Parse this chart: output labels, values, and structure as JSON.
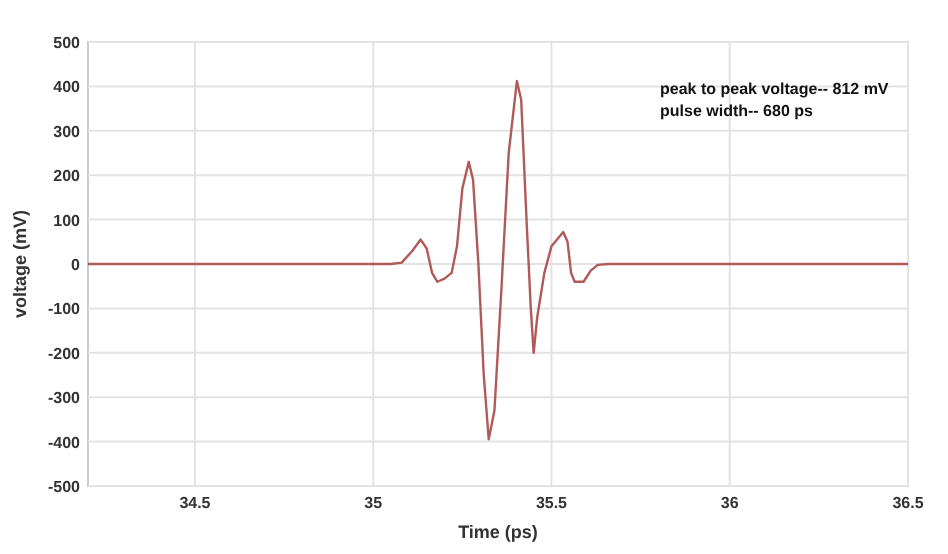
{
  "chart_data": {
    "type": "line",
    "xlabel": "Time (ps)",
    "ylabel": "voltage (mV)",
    "annotations": [
      "peak to peak voltage-- 812 mV",
      "pulse width-- 680 ps"
    ],
    "xlim": [
      34.2,
      36.5
    ],
    "xticks": [
      34.5,
      35,
      35.5,
      36,
      36.5
    ],
    "ylim": [
      -500,
      500
    ],
    "yticks": [
      -500,
      -400,
      -300,
      -200,
      -100,
      0,
      100,
      200,
      300,
      400,
      500
    ],
    "grid": true,
    "series": [
      {
        "color": "#b05a5a",
        "x": [
          34.2,
          35.05,
          35.08,
          35.11,
          35.133,
          35.15,
          35.165,
          35.18,
          35.2,
          35.22,
          35.235,
          35.25,
          35.268,
          35.28,
          35.295,
          35.31,
          35.324,
          35.34,
          35.36,
          35.38,
          35.403,
          35.415,
          35.43,
          35.442,
          35.45,
          35.46,
          35.48,
          35.5,
          35.533,
          35.545,
          35.555,
          35.565,
          35.59,
          35.61,
          35.63,
          35.66,
          36.5
        ],
        "values": [
          0,
          0,
          3,
          30,
          55,
          35,
          -20,
          -40,
          -33,
          -20,
          40,
          170,
          230,
          190,
          0,
          -250,
          -395,
          -330,
          -50,
          250,
          412,
          370,
          100,
          -100,
          -200,
          -120,
          -20,
          40,
          72,
          50,
          -20,
          -40,
          -40,
          -15,
          -2,
          0,
          0
        ]
      }
    ]
  }
}
